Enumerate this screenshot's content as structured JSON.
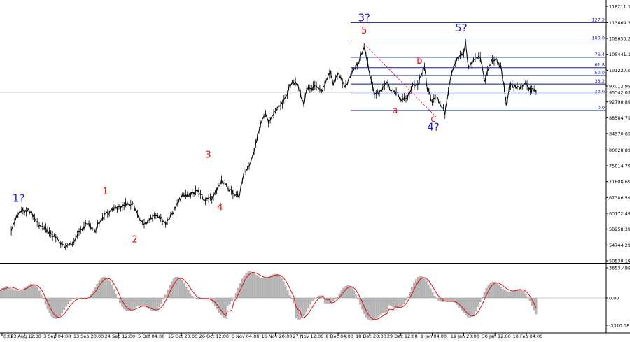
{
  "chart_data": [
    {
      "type": "line",
      "title": "",
      "series": [
        {
          "values_note_excluded": true,
          "x": [
            "23 Aug 12:00",
            "3 Sep 04:00",
            "13 Sep 20:00",
            "24 Sep 12:00",
            "5 Oct 04:00",
            "15 Oct 20:00",
            "26 Oct 12:00",
            "6 Nov 04:00",
            "16 Nov 20:00",
            "27 Nov 12:00",
            "8 Dec 04:00",
            "18 Dec 20:00",
            "29 Dec 12:00",
            "9 Jan 04:00",
            "19 Jan 20:00",
            "30 Jan 12:00",
            "10 Feb 04:00"
          ],
          "y": [
            63500,
            55000,
            61000,
            65500,
            60500,
            68500,
            70500,
            72500,
            91000,
            95500,
            100500,
            95000,
            93000,
            95500,
            103500,
            98000,
            95342
          ]
        }
      ],
      "y_ticks": [
        "118211.19",
        "113869.39",
        "109655.29",
        "105441.19",
        "101227.09",
        "97012.99",
        "92798.89",
        "88584.79",
        "84370.69",
        "80028.89",
        "75814.79",
        "71600.69",
        "67386.59",
        "63172.49",
        "58958.39",
        "54744.29",
        "50530.19"
      ],
      "current_price": "95342.02",
      "fib_levels": [
        {
          "label": "127.2",
          "price": 113869
        },
        {
          "label": "100.0",
          "price": 109000
        },
        {
          "label": "76.4",
          "price": 104650
        },
        {
          "label": "61.8",
          "price": 101900
        },
        {
          "label": "50.0",
          "price": 99800
        },
        {
          "label": "38.2",
          "price": 97550
        },
        {
          "label": "23.6",
          "price": 94900
        },
        {
          "label": "0.0",
          "price": 90500
        }
      ],
      "wave_labels": [
        {
          "text": "1?",
          "color": "#1a1adc",
          "x": "21 Aug 12:00",
          "y": 66200
        },
        {
          "text": "1",
          "color": "#e01010",
          "x": "20 Sep 00:00",
          "y": 68200
        },
        {
          "text": "2",
          "color": "#e01010",
          "x": "30 Sep 00:00",
          "y": 55500
        },
        {
          "text": "3",
          "color": "#e01010",
          "x": "25 Oct 00:00",
          "y": 78000
        },
        {
          "text": "4",
          "color": "#e01010",
          "x": "29 Oct 00:00",
          "y": 64000
        },
        {
          "text": "3?",
          "color": "#1a1adc",
          "x": "17 Dec 00:00",
          "y": 114200
        },
        {
          "text": "5",
          "color": "#e01010",
          "x": "17 Dec 00:00",
          "y": 111000
        },
        {
          "text": "a",
          "color": "#e01010",
          "x": "27 Dec 12:00",
          "y": 89800
        },
        {
          "text": "b",
          "color": "#e01010",
          "x": "4 Jan 20:00",
          "y": 103000
        },
        {
          "text": "c",
          "color": "#e01010",
          "x": "9 Jan 12:00",
          "y": 87500
        },
        {
          "text": "4?",
          "color": "#1a1adc",
          "x": "9 Jan 12:00",
          "y": 85200
        },
        {
          "text": "5?",
          "color": "#1a1adc",
          "x": "19 Jan 00:00",
          "y": 111500
        }
      ]
    },
    {
      "type": "area",
      "title": "",
      "y_ticks": [
        "3653.499",
        "0.00",
        "-3310.58"
      ],
      "ylim": [
        -3310.58,
        3653.499
      ]
    }
  ],
  "x_tick_labels": [
    "0:00",
    "23 Aug 12:00",
    "3 Sep 04:00",
    "13 Sep 20:00",
    "24 Sep 12:00",
    "5 Oct 04:00",
    "15 Oct 20:00",
    "26 Oct 12:00",
    "6 Nov 04:00",
    "16 Nov 20:00",
    "27 Nov 12:00",
    "8 Dec 04:00",
    "18 Dec 20:00",
    "29 Dec 12:00",
    "9 Jan 04:00",
    "19 Jan 20:00",
    "30 Jan 12:00",
    "10 Feb 04:00"
  ],
  "colors": {
    "price": "#000000",
    "fib": "#0b1a9a",
    "fib_label": "#2222cc",
    "wave_blue": "#1a1adc",
    "wave_red": "#e01010",
    "osc_fill": "#b5b5b5",
    "osc_line": "#e01010"
  }
}
